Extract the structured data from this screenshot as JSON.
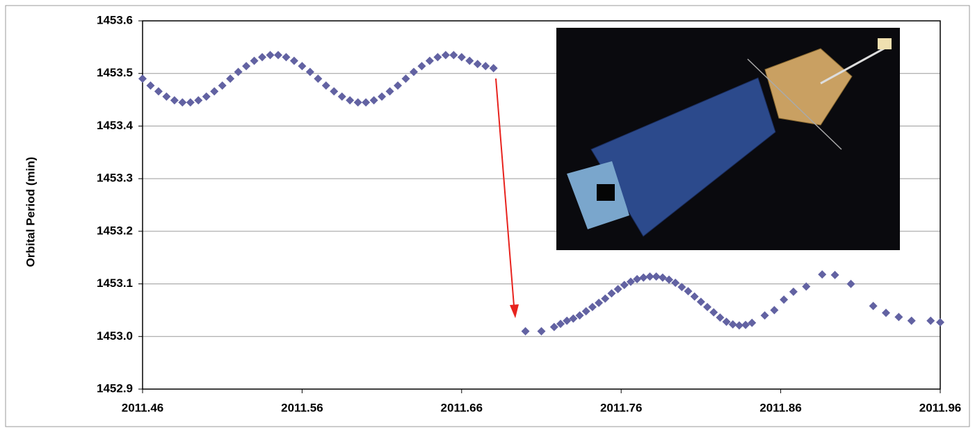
{
  "chart_data": {
    "type": "scatter",
    "y_label": "Orbital Period (min)",
    "x": [
      2011.46,
      2011.465,
      2011.47,
      2011.475,
      2011.48,
      2011.485,
      2011.49,
      2011.495,
      2011.5,
      2011.505,
      2011.51,
      2011.515,
      2011.52,
      2011.525,
      2011.53,
      2011.535,
      2011.54,
      2011.545,
      2011.55,
      2011.555,
      2011.56,
      2011.565,
      2011.57,
      2011.575,
      2011.58,
      2011.585,
      2011.59,
      2011.595,
      2011.6,
      2011.605,
      2011.61,
      2011.615,
      2011.62,
      2011.625,
      2011.63,
      2011.635,
      2011.64,
      2011.645,
      2011.65,
      2011.655,
      2011.66,
      2011.665,
      2011.67,
      2011.675,
      2011.68,
      2011.7,
      2011.71,
      2011.718,
      2011.722,
      2011.726,
      2011.73,
      2011.734,
      2011.738,
      2011.742,
      2011.746,
      2011.75,
      2011.754,
      2011.758,
      2011.762,
      2011.766,
      2011.77,
      2011.774,
      2011.778,
      2011.782,
      2011.786,
      2011.79,
      2011.794,
      2011.798,
      2011.802,
      2011.806,
      2011.81,
      2011.814,
      2011.818,
      2011.822,
      2011.826,
      2011.83,
      2011.834,
      2011.838,
      2011.842,
      2011.85,
      2011.856,
      2011.862,
      2011.868,
      2011.876,
      2011.886,
      2011.894,
      2011.904,
      2011.918,
      2011.926,
      2011.934,
      2011.942,
      2011.954,
      2011.96
    ],
    "values": [
      1453.49,
      1453.477,
      1453.466,
      1453.456,
      1453.449,
      1453.445,
      1453.445,
      1453.449,
      1453.456,
      1453.466,
      1453.477,
      1453.49,
      1453.503,
      1453.514,
      1453.524,
      1453.531,
      1453.535,
      1453.535,
      1453.531,
      1453.524,
      1453.514,
      1453.503,
      1453.49,
      1453.477,
      1453.466,
      1453.456,
      1453.449,
      1453.445,
      1453.445,
      1453.449,
      1453.456,
      1453.466,
      1453.477,
      1453.49,
      1453.503,
      1453.514,
      1453.524,
      1453.531,
      1453.535,
      1453.535,
      1453.531,
      1453.524,
      1453.518,
      1453.514,
      1453.51,
      1453.01,
      1453.01,
      1453.018,
      1453.024,
      1453.03,
      1453.034,
      1453.04,
      1453.048,
      1453.056,
      1453.064,
      1453.072,
      1453.082,
      1453.09,
      1453.098,
      1453.104,
      1453.109,
      1453.112,
      1453.114,
      1453.114,
      1453.112,
      1453.108,
      1453.102,
      1453.094,
      1453.086,
      1453.076,
      1453.066,
      1453.056,
      1453.046,
      1453.036,
      1453.028,
      1453.023,
      1453.021,
      1453.022,
      1453.026,
      1453.04,
      1453.05,
      1453.07,
      1453.085,
      1453.095,
      1453.118,
      1453.117,
      1453.1,
      1453.058,
      1453.045,
      1453.037,
      1453.03,
      1453.03,
      1453.027
    ],
    "color": "#6262a2",
    "xlim": [
      2011.46,
      2011.96
    ],
    "xticks": [
      2011.46,
      2011.56,
      2011.66,
      2011.76,
      2011.86,
      2011.96
    ],
    "ylim": [
      1452.9,
      1453.6
    ],
    "yticks": [
      1452.9,
      {
        "value": 1453,
        "label": "1453.0"
      },
      1453.1,
      1453.2,
      1453.3,
      1453.4,
      1453.5,
      1453.6
    ],
    "grid": true
  }
}
